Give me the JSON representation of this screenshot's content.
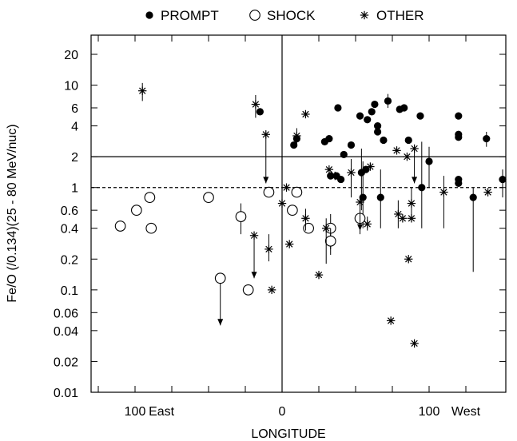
{
  "chart_data": {
    "type": "scatter",
    "title": "",
    "xlabel": "LONGITUDE",
    "ylabel": "Fe/O (/0.134)(25 - 80 MeV/nuc)",
    "y_scale": "log",
    "xlim": [
      -130,
      145
    ],
    "ylim": [
      0.01,
      30
    ],
    "x_ticks": [
      {
        "value": 100,
        "label": "100"
      },
      {
        "value": 0,
        "label": "0"
      },
      {
        "value": 100,
        "label": "100"
      }
    ],
    "x_tick_labels": [
      {
        "x": -100,
        "label": "100"
      },
      {
        "x": -82,
        "label": "East"
      },
      {
        "x": 0,
        "label": "0"
      },
      {
        "x": 100,
        "label": "100"
      },
      {
        "x": 125,
        "label": "West"
      }
    ],
    "y_tick_labels": [
      "20",
      "10",
      "6",
      "4",
      "2",
      "1",
      "0.6",
      "0.4",
      "0.2",
      "0.1",
      "0.06",
      "0.04",
      "0.02",
      "0.01"
    ],
    "y_tick_values": [
      20,
      10,
      6,
      4,
      2,
      1,
      0.6,
      0.4,
      0.2,
      0.1,
      0.06,
      0.04,
      0.02,
      0.01
    ],
    "x_minor_ticks": [
      -125,
      -100,
      -75,
      -50,
      -25,
      0,
      25,
      50,
      75,
      100,
      125
    ],
    "reference_lines": [
      {
        "y": 2,
        "style": "solid"
      },
      {
        "y": 1,
        "style": "dashed"
      },
      {
        "x": 0,
        "style": "solid"
      }
    ],
    "legend": {
      "placement": "top",
      "entries": [
        {
          "symbol": "filled-circle",
          "label": "PROMPT"
        },
        {
          "symbol": "open-circle",
          "label": "SHOCK"
        },
        {
          "symbol": "asterisk",
          "label": "OTHER"
        }
      ]
    },
    "series": [
      {
        "name": "PROMPT",
        "marker": "filled-circle",
        "points": [
          {
            "x": -15,
            "y": 5.5
          },
          {
            "x": 8,
            "y": 2.6
          },
          {
            "x": 10,
            "y": 3.0
          },
          {
            "x": 29,
            "y": 2.8
          },
          {
            "x": 32,
            "y": 3.0
          },
          {
            "x": 33,
            "y": 1.3
          },
          {
            "x": 37,
            "y": 1.3
          },
          {
            "x": 38,
            "y": 6.0
          },
          {
            "x": 40,
            "y": 1.2
          },
          {
            "x": 42,
            "y": 2.1
          },
          {
            "x": 47,
            "y": 2.6
          },
          {
            "x": 53,
            "y": 5.0
          },
          {
            "x": 54,
            "y": 1.4,
            "err": [
              0.6,
              2.4
            ]
          },
          {
            "x": 55,
            "y": 0.8,
            "err": [
              0.4,
              1.8
            ]
          },
          {
            "x": 57,
            "y": 1.5
          },
          {
            "x": 58,
            "y": 4.6
          },
          {
            "x": 61,
            "y": 5.5
          },
          {
            "x": 63,
            "y": 6.5
          },
          {
            "x": 65,
            "y": 4.0
          },
          {
            "x": 65,
            "y": 3.5
          },
          {
            "x": 67,
            "y": 0.8,
            "err": [
              0.4,
              1.5
            ]
          },
          {
            "x": 69,
            "y": 2.9
          },
          {
            "x": 72,
            "y": 7.0,
            "err": [
              6.0,
              8.2
            ]
          },
          {
            "x": 80,
            "y": 5.8
          },
          {
            "x": 83,
            "y": 6.0
          },
          {
            "x": 86,
            "y": 2.9
          },
          {
            "x": 94,
            "y": 5.0
          },
          {
            "x": 95,
            "y": 1.0,
            "err": [
              0.4,
              2.8
            ]
          },
          {
            "x": 100,
            "y": 1.8,
            "err": [
              1.0,
              2.5
            ]
          },
          {
            "x": 120,
            "y": 5.0
          },
          {
            "x": 120,
            "y": 3.3
          },
          {
            "x": 120,
            "y": 3.1
          },
          {
            "x": 120,
            "y": 1.2
          },
          {
            "x": 120,
            "y": 1.1
          },
          {
            "x": 130,
            "y": 0.8,
            "err": [
              0.15,
              1.0
            ]
          },
          {
            "x": 139,
            "y": 3.0,
            "err": [
              2.5,
              3.5
            ]
          },
          {
            "x": 150,
            "y": 1.2,
            "err": [
              0.8,
              1.5
            ]
          }
        ]
      },
      {
        "name": "SHOCK",
        "marker": "open-circle",
        "points": [
          {
            "x": -110,
            "y": 0.42
          },
          {
            "x": -99,
            "y": 0.6
          },
          {
            "x": -90,
            "y": 0.8
          },
          {
            "x": -89,
            "y": 0.4
          },
          {
            "x": -50,
            "y": 0.8
          },
          {
            "x": -42,
            "y": 0.13,
            "arrow_down_to": 0.045
          },
          {
            "x": -28,
            "y": 0.52,
            "err": [
              0.35,
              0.7
            ]
          },
          {
            "x": -23,
            "y": 0.1
          },
          {
            "x": -9,
            "y": 0.9
          },
          {
            "x": 7,
            "y": 0.6
          },
          {
            "x": 10,
            "y": 0.9
          },
          {
            "x": 18,
            "y": 0.4
          },
          {
            "x": 33,
            "y": 0.4,
            "err": [
              0.25,
              0.55
            ]
          },
          {
            "x": 33,
            "y": 0.3,
            "err": [
              0.22,
              0.4
            ]
          },
          {
            "x": 53,
            "y": 0.5,
            "err": [
              0.35,
              0.6
            ]
          }
        ]
      },
      {
        "name": "OTHER",
        "marker": "asterisk",
        "points": [
          {
            "x": -95,
            "y": 8.8,
            "err": [
              7.0,
              10.5
            ]
          },
          {
            "x": -18,
            "y": 6.5,
            "err": [
              4.8,
              8.0
            ]
          },
          {
            "x": -11,
            "y": 3.3,
            "arrow_down_to": 1.1
          },
          {
            "x": -19,
            "y": 0.34,
            "arrow_down_to": 0.13
          },
          {
            "x": -9,
            "y": 0.25,
            "err": [
              0.19,
              0.35
            ]
          },
          {
            "x": -7,
            "y": 0.1
          },
          {
            "x": 0,
            "y": 0.7
          },
          {
            "x": 3,
            "y": 1.0
          },
          {
            "x": 5,
            "y": 0.28
          },
          {
            "x": 10,
            "y": 3.2,
            "err": [
              2.6,
              3.8
            ]
          },
          {
            "x": 16,
            "y": 5.2
          },
          {
            "x": 16,
            "y": 0.5,
            "err": [
              0.38,
              0.62
            ]
          },
          {
            "x": 25,
            "y": 0.14
          },
          {
            "x": 30,
            "y": 0.4,
            "err": [
              0.18,
              0.5
            ]
          },
          {
            "x": 32,
            "y": 1.5
          },
          {
            "x": 36,
            "y": 1.3
          },
          {
            "x": 47,
            "y": 1.4,
            "err": [
              0.8,
              1.9
            ]
          },
          {
            "x": 53,
            "y": 0.72,
            "arrow_down_to": 0.38
          },
          {
            "x": 58,
            "y": 0.44,
            "err": [
              0.38,
              0.52
            ]
          },
          {
            "x": 60,
            "y": 1.6
          },
          {
            "x": 74,
            "y": 0.05
          },
          {
            "x": 78,
            "y": 2.3
          },
          {
            "x": 79,
            "y": 0.55,
            "err": [
              0.4,
              0.75
            ]
          },
          {
            "x": 82,
            "y": 0.5
          },
          {
            "x": 85,
            "y": 2.0
          },
          {
            "x": 88,
            "y": 0.7,
            "err": [
              0.5,
              1.0
            ]
          },
          {
            "x": 88,
            "y": 0.5
          },
          {
            "x": 86,
            "y": 0.2
          },
          {
            "x": 90,
            "y": 2.4,
            "arrow_down_to": 1.1
          },
          {
            "x": 90,
            "y": 0.03
          },
          {
            "x": 110,
            "y": 0.9,
            "err": [
              0.4,
              1.3
            ]
          },
          {
            "x": 140,
            "y": 0.9
          }
        ]
      }
    ]
  }
}
